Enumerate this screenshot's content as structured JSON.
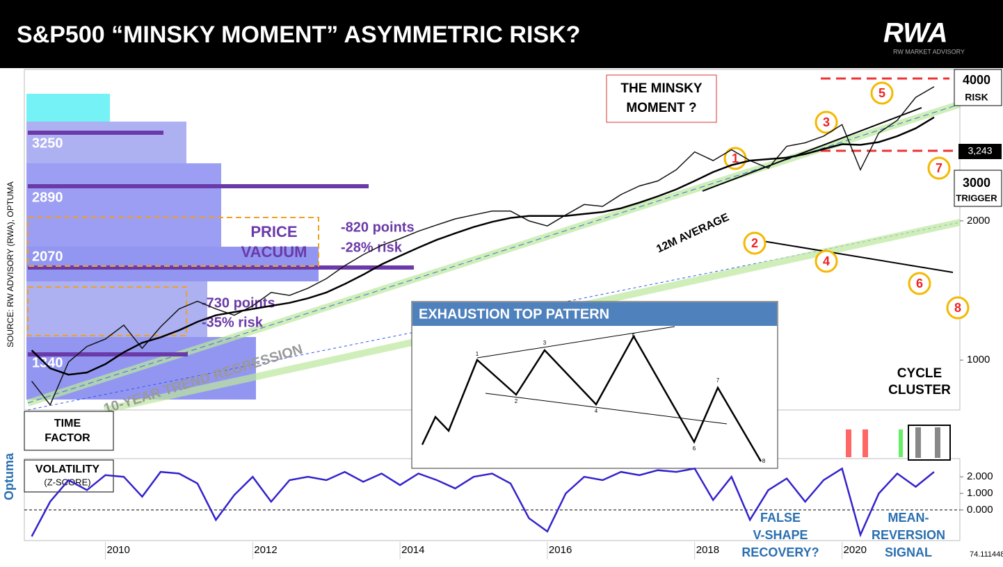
{
  "header": {
    "title": "S&P500 “MINSKY MOMENT” ASYMMETRIC RISK?",
    "logo": "RWA",
    "logo_sub": "RW MARKET ADVISORY"
  },
  "source": "SOURCE: RW ADVISORY (RWA), OPTUMA",
  "brand": "Optuma",
  "corner_value": "74.111448",
  "annotations": [
    "THE MINSKY",
    "MOMENT ?",
    "4000",
    "RISK",
    "3,243",
    "3000",
    "TRIGGER",
    "3250",
    "2890",
    "2070",
    "1340",
    "PRICE",
    "VACUUM",
    "-820 points",
    "-28% risk",
    "-730 points",
    "-35% risk",
    "12M AVERAGE",
    "10-YEAR TREND REGRESSION",
    "CYCLE",
    "CLUSTER",
    "TIME",
    "FACTOR",
    "VOLATILITY",
    "(Z-SCORE)",
    "FALSE",
    "V-SHAPE",
    "RECOVERY?",
    "MEAN-",
    "REVERSION",
    "SIGNAL"
  ],
  "waves": [
    "1",
    "2",
    "3",
    "4",
    "5",
    "6",
    "7",
    "8"
  ],
  "inset": {
    "title": "EXHAUSTION TOP PATTERN",
    "points": [
      "1",
      "2",
      "3",
      "4",
      "5",
      "6",
      "7",
      "8"
    ]
  },
  "chart_data": [
    {
      "type": "line",
      "log_scale": true,
      "x": [
        2009,
        2009.25,
        2009.5,
        2009.75,
        2010,
        2010.25,
        2010.5,
        2010.75,
        2011,
        2011.25,
        2011.5,
        2011.75,
        2012,
        2012.25,
        2012.5,
        2012.75,
        2013,
        2013.25,
        2013.5,
        2013.75,
        2014,
        2014.25,
        2014.5,
        2014.75,
        2015,
        2015.25,
        2015.5,
        2015.75,
        2016,
        2016.25,
        2016.5,
        2016.75,
        2017,
        2017.25,
        2017.5,
        2017.75,
        2018,
        2018.25,
        2018.5,
        2018.75,
        2019,
        2019.25,
        2019.5,
        2019.75,
        2020,
        2020.25,
        2020.5,
        2020.75,
        2021,
        2021.25
      ],
      "series": [
        {
          "name": "S&P500",
          "color": "#111111",
          "values": [
            900,
            800,
            990,
            1070,
            1110,
            1190,
            1060,
            1180,
            1290,
            1340,
            1290,
            1250,
            1310,
            1400,
            1380,
            1430,
            1500,
            1600,
            1690,
            1770,
            1830,
            1900,
            1960,
            2020,
            2060,
            2100,
            2100,
            2000,
            1950,
            2060,
            2170,
            2150,
            2280,
            2380,
            2440,
            2580,
            2820,
            2700,
            2850,
            2700,
            2600,
            2900,
            2950,
            3050,
            3230,
            2580,
            3100,
            3300,
            3700,
            3900
          ]
        },
        {
          "name": "12M AVERAGE",
          "color": "#000000",
          "values": [
            1050,
            960,
            930,
            940,
            980,
            1040,
            1090,
            1120,
            1160,
            1210,
            1250,
            1270,
            1290,
            1310,
            1330,
            1360,
            1400,
            1460,
            1530,
            1610,
            1680,
            1750,
            1820,
            1880,
            1940,
            1990,
            2030,
            2050,
            2050,
            2050,
            2070,
            2090,
            2130,
            2190,
            2260,
            2340,
            2440,
            2550,
            2640,
            2700,
            2720,
            2740,
            2790,
            2860,
            2930,
            2920,
            2960,
            3050,
            3170,
            3350
          ]
        }
      ],
      "xlim": [
        2008.9,
        2021.6
      ],
      "xticks": [
        2010,
        2012,
        2014,
        2016,
        2018,
        2020
      ],
      "ylim": [
        780,
        4250
      ],
      "yticks": [
        1000,
        2000
      ]
    },
    {
      "type": "line",
      "x": [
        2009,
        2009.25,
        2009.5,
        2009.75,
        2010,
        2010.25,
        2010.5,
        2010.75,
        2011,
        2011.25,
        2011.5,
        2011.75,
        2012,
        2012.25,
        2012.5,
        2012.75,
        2013,
        2013.25,
        2013.5,
        2013.75,
        2014,
        2014.25,
        2014.5,
        2014.75,
        2015,
        2015.25,
        2015.5,
        2015.75,
        2016,
        2016.25,
        2016.5,
        2016.75,
        2017,
        2017.25,
        2017.5,
        2017.75,
        2018,
        2018.25,
        2018.5,
        2018.75,
        2019,
        2019.25,
        2019.5,
        2019.75,
        2020,
        2020.25,
        2020.5,
        2020.75,
        2021,
        2021.25
      ],
      "series": [
        {
          "name": "VOLATILITY",
          "color": "#3322cc",
          "values": [
            -1.6,
            0.5,
            1.8,
            1.2,
            2.1,
            2.0,
            0.8,
            2.3,
            2.2,
            1.6,
            -0.6,
            0.9,
            2.0,
            0.5,
            1.8,
            2.0,
            1.8,
            2.3,
            1.7,
            2.2,
            1.5,
            2.2,
            1.8,
            1.3,
            2.0,
            2.2,
            1.6,
            -0.5,
            -1.3,
            1.0,
            2.0,
            1.8,
            2.3,
            2.1,
            2.4,
            2.3,
            2.5,
            0.6,
            2.0,
            -0.6,
            1.2,
            1.9,
            0.5,
            1.8,
            2.5,
            -1.5,
            1.0,
            2.2,
            1.4,
            2.3
          ]
        }
      ],
      "xlim": [
        2008.9,
        2021.6
      ],
      "ylim": [
        -1.85,
        3.1
      ],
      "yticks": [
        {
          "value": 0,
          "label": "0.000"
        },
        {
          "value": 1,
          "label": "1.000"
        },
        {
          "value": 2,
          "label": "2.000"
        }
      ]
    }
  ]
}
